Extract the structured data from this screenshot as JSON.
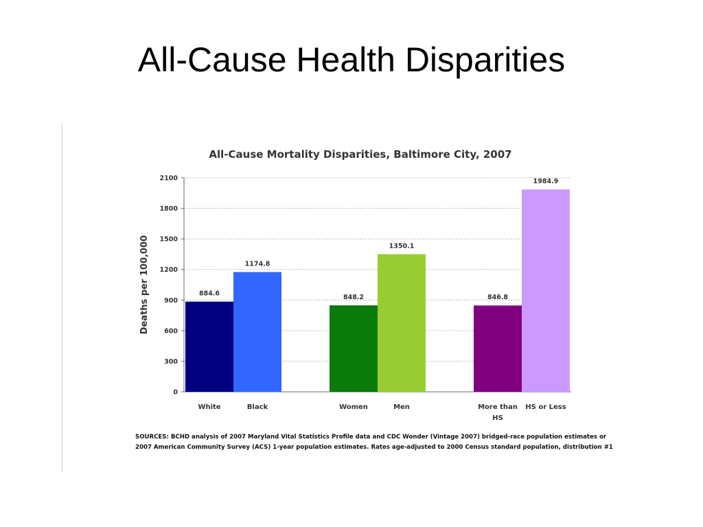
{
  "slide": {
    "title": "All-Cause Health Disparities"
  },
  "chart_data": {
    "type": "bar",
    "title": "All-Cause Mortality Disparities, Baltimore City, 2007",
    "ylabel": "Deaths per 100,000",
    "xlabel": "",
    "ylim": [
      0,
      2100
    ],
    "yticks": [
      0,
      300,
      600,
      900,
      1200,
      1500,
      1800,
      2100
    ],
    "grid": true,
    "categories": [
      "White",
      "Black",
      "Women",
      "Men",
      "More than HS",
      "HS or Less"
    ],
    "category_lines": [
      [
        "White"
      ],
      [
        "Black"
      ],
      [
        "Women"
      ],
      [
        "Men"
      ],
      [
        "More than",
        "HS"
      ],
      [
        "HS or Less"
      ]
    ],
    "values": [
      884.6,
      1174.8,
      848.2,
      1350.1,
      846.8,
      1984.9
    ],
    "value_labels": [
      "884.6",
      "1174.8",
      "848.2",
      "1350.1",
      "846.8",
      "1984.9"
    ],
    "groups": [
      [
        0,
        1
      ],
      [
        2,
        3
      ],
      [
        4,
        5
      ]
    ],
    "colors": [
      "#000080",
      "#3366ff",
      "#0a7a0a",
      "#99cc33",
      "#800080",
      "#cc99ff"
    ],
    "sources": [
      "SOURCES:  BCHD analysis of 2007 Maryland Vital Statistics Profile data and CDC Wonder (Vintage 2007) bridged-race population estimates or",
      "2007 American Community Survey (ACS) 1-year population estimates.  Rates age-adjusted to 2000 Census standard population, distribution #1"
    ]
  }
}
